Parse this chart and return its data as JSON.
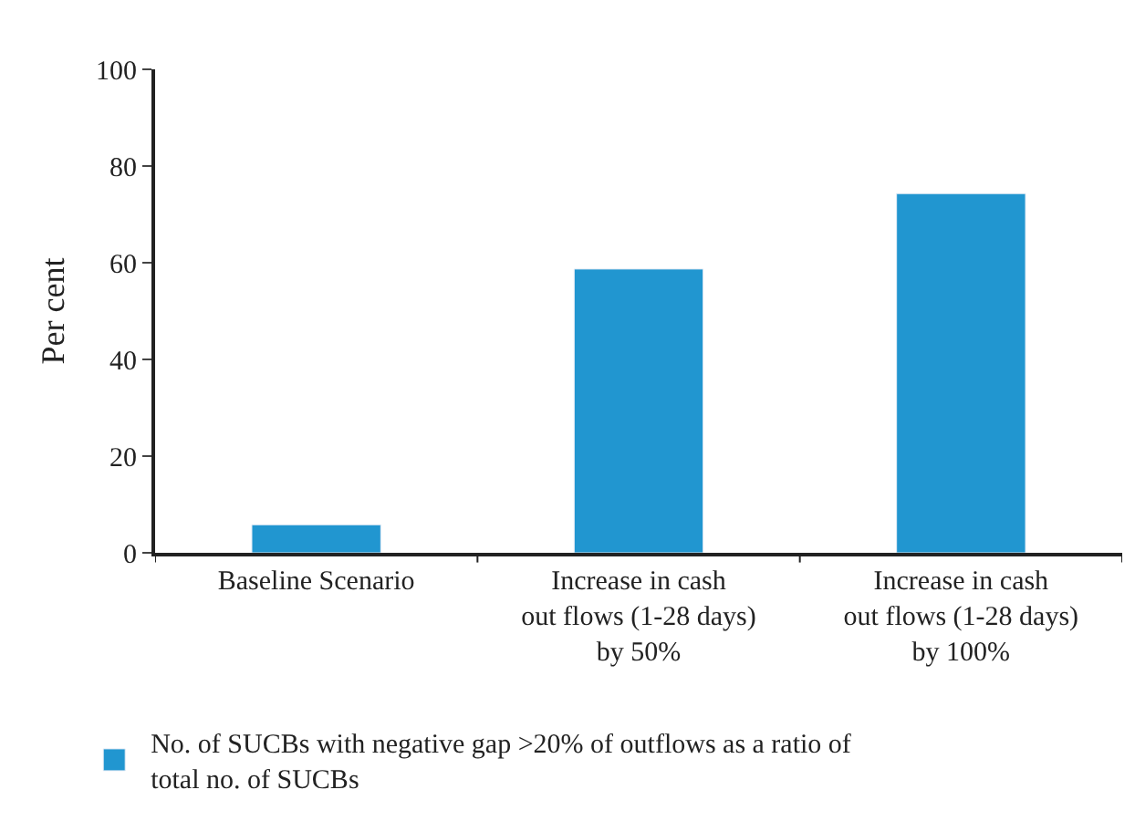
{
  "chart_data": {
    "type": "bar",
    "ylabel": "Per cent",
    "categories": [
      "Baseline Scenario",
      "Increase in cash\nout flows (1-28 days)\nby 50%",
      "Increase in cash\nout flows (1-28 days)\nby 100%"
    ],
    "series": [
      {
        "name": "No. of SUCBs with negative gap >20% of outflows as a ratio of\ntotal no. of SUCBs",
        "color": "#2196d0",
        "values": [
          5.8,
          58.7,
          74.3
        ]
      }
    ],
    "ylim": [
      0,
      100
    ],
    "yticks": [
      0,
      20,
      40,
      60,
      80,
      100
    ],
    "legend": "bottom left"
  }
}
